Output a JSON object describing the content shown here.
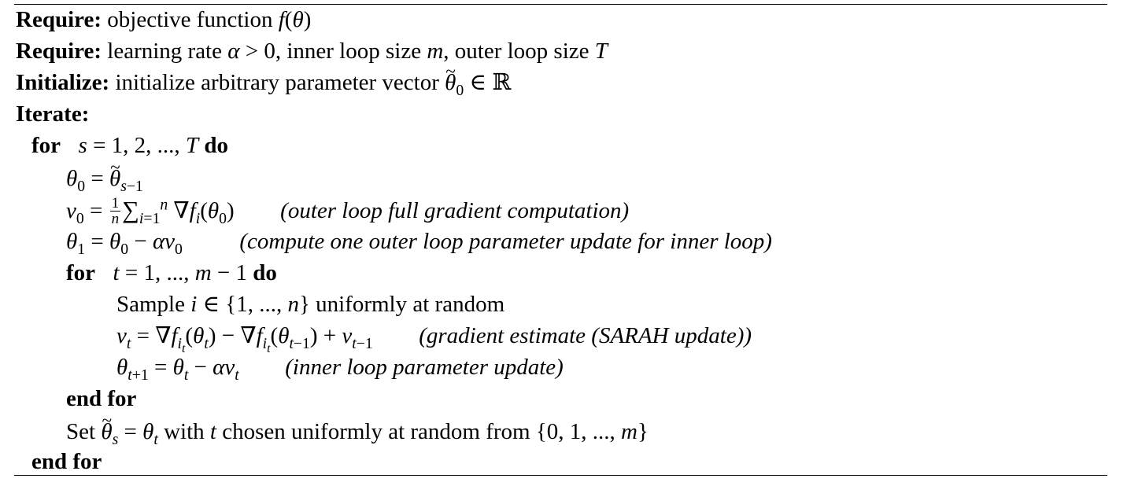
{
  "lines": [
    {
      "keyword": "Require:",
      "text": "objective function"
    },
    {
      "keyword": "Require:",
      "text_a": "learning rate",
      "text_b": ", inner loop size",
      "text_c": ", outer loop size"
    },
    {
      "keyword": "Initialize:",
      "text": "initialize arbitrary parameter vector"
    },
    {
      "keyword": "Iterate:"
    },
    {
      "keyword": "for",
      "keyword_end": "do"
    },
    {
      "text": ""
    },
    {
      "comment": "(outer loop full gradient computation)"
    },
    {
      "comment": "(compute one outer loop parameter update for inner loop)"
    },
    {
      "keyword": "for",
      "keyword_end": "do"
    },
    {
      "text_a": "Sample",
      "text_b": "uniformly at random"
    },
    {
      "comment": "(gradient estimate (SARAH update))"
    },
    {
      "comment": "(inner loop parameter update)"
    },
    {
      "keyword": "end for"
    },
    {
      "text_a": "Set",
      "text_b": "with",
      "text_c": "chosen uniformly at random from"
    },
    {
      "keyword": "end for"
    }
  ]
}
